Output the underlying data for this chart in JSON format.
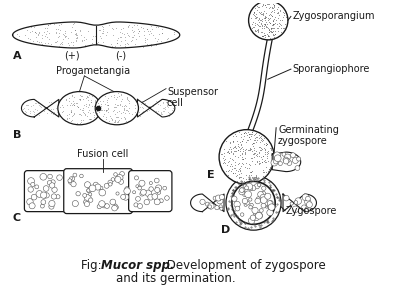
{
  "background_color": "#ffffff",
  "fig_width": 4.0,
  "fig_height": 2.91,
  "dpi": 100,
  "title_italic": "Mucor spp.",
  "title_fontsize": 8.5,
  "label_A": "A",
  "label_B": "B",
  "label_C": "C",
  "label_D": "D",
  "label_E": "E",
  "text_plus": "(+)",
  "text_minus": "(-)",
  "text_progametangia": "Progametangia",
  "text_suspensor": "Suspensor\ncell",
  "text_fusion": "Fusion cell",
  "text_zygosporangium": "Zygosporangium",
  "text_sporangiophore": "Sporangiophore",
  "text_germinating": "Germinating\nzygospore",
  "text_zygospore": "Zygospore",
  "line_color": "#1a1a1a",
  "dot_color": "#555555"
}
